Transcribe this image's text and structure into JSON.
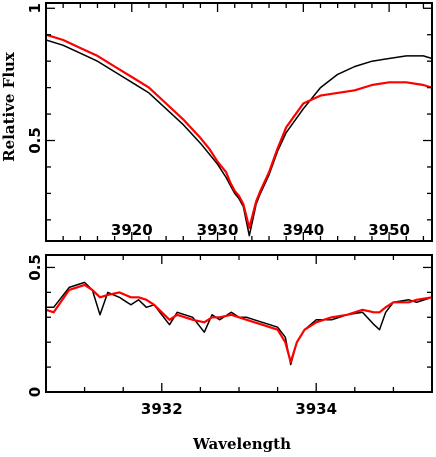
{
  "chart_data": [
    {
      "type": "line",
      "panel": "top",
      "ylabel": "Relative Flux",
      "xlim": [
        3910,
        3955
      ],
      "ylim": [
        0.12,
        1.02
      ],
      "x_ticks": [
        3920,
        3930,
        3940,
        3950
      ],
      "y_ticks": [
        0.5,
        1
      ],
      "x_tick_labels_inside": true,
      "series": [
        {
          "color": "#000000",
          "x": [
            3910,
            3912,
            3914,
            3916,
            3918,
            3920,
            3922,
            3924,
            3926,
            3928,
            3929,
            3930,
            3931,
            3931.5,
            3932,
            3932.5,
            3933,
            3933.7,
            3934.5,
            3935,
            3936,
            3937,
            3938,
            3940,
            3942,
            3944,
            3946,
            3948,
            3950,
            3952,
            3954,
            3955
          ],
          "y": [
            0.88,
            0.86,
            0.83,
            0.8,
            0.76,
            0.72,
            0.68,
            0.62,
            0.56,
            0.49,
            0.45,
            0.41,
            0.36,
            0.33,
            0.3,
            0.28,
            0.25,
            0.14,
            0.26,
            0.3,
            0.37,
            0.46,
            0.53,
            0.62,
            0.7,
            0.75,
            0.78,
            0.8,
            0.81,
            0.82,
            0.82,
            0.81
          ]
        },
        {
          "color": "#ff0000",
          "x": [
            3910,
            3912,
            3914,
            3916,
            3918,
            3920,
            3922,
            3924,
            3926,
            3928,
            3929,
            3930,
            3931,
            3931.5,
            3932,
            3932.5,
            3933,
            3933.7,
            3934.5,
            3935,
            3936,
            3937,
            3938,
            3940,
            3942,
            3944,
            3946,
            3948,
            3950,
            3952,
            3954,
            3955
          ],
          "y": [
            0.9,
            0.88,
            0.85,
            0.82,
            0.78,
            0.74,
            0.7,
            0.64,
            0.58,
            0.51,
            0.47,
            0.42,
            0.38,
            0.34,
            0.31,
            0.29,
            0.26,
            0.17,
            0.27,
            0.31,
            0.38,
            0.47,
            0.55,
            0.64,
            0.67,
            0.68,
            0.69,
            0.71,
            0.72,
            0.72,
            0.71,
            0.7
          ]
        }
      ]
    },
    {
      "type": "line",
      "panel": "bottom",
      "xlabel": "Wavelength",
      "xlim": [
        3930.5,
        3935.5
      ],
      "ylim": [
        0,
        0.55
      ],
      "x_ticks": [
        3932,
        3934
      ],
      "y_ticks": [
        0,
        0.5
      ],
      "series": [
        {
          "color": "#000000",
          "x": [
            3930.5,
            3930.6,
            3930.8,
            3930.9,
            3931.0,
            3931.1,
            3931.2,
            3931.3,
            3931.45,
            3931.6,
            3931.7,
            3931.8,
            3931.9,
            3932.0,
            3932.1,
            3932.2,
            3932.3,
            3932.4,
            3932.55,
            3932.65,
            3932.75,
            3932.9,
            3933.0,
            3933.1,
            3933.2,
            3933.3,
            3933.4,
            3933.5,
            3933.6,
            3933.67,
            3933.75,
            3933.85,
            3934.0,
            3934.2,
            3934.4,
            3934.6,
            3934.75,
            3934.82,
            3934.9,
            3935.0,
            3935.2,
            3935.3,
            3935.5
          ],
          "y": [
            0.34,
            0.34,
            0.42,
            0.43,
            0.44,
            0.41,
            0.31,
            0.4,
            0.38,
            0.35,
            0.37,
            0.34,
            0.35,
            0.31,
            0.27,
            0.32,
            0.31,
            0.3,
            0.24,
            0.31,
            0.29,
            0.32,
            0.3,
            0.3,
            0.29,
            0.28,
            0.27,
            0.26,
            0.22,
            0.11,
            0.2,
            0.25,
            0.29,
            0.29,
            0.31,
            0.32,
            0.27,
            0.25,
            0.32,
            0.36,
            0.37,
            0.36,
            0.38
          ]
        },
        {
          "color": "#ff0000",
          "x": [
            3930.5,
            3930.6,
            3930.8,
            3930.9,
            3931.0,
            3931.1,
            3931.2,
            3931.3,
            3931.45,
            3931.6,
            3931.7,
            3931.8,
            3931.9,
            3932.0,
            3932.1,
            3932.2,
            3932.3,
            3932.4,
            3932.55,
            3932.65,
            3932.75,
            3932.9,
            3933.0,
            3933.1,
            3933.2,
            3933.3,
            3933.4,
            3933.5,
            3933.6,
            3933.67,
            3933.75,
            3933.85,
            3934.0,
            3934.2,
            3934.4,
            3934.6,
            3934.75,
            3934.82,
            3934.9,
            3935.0,
            3935.2,
            3935.3,
            3935.5
          ],
          "y": [
            0.33,
            0.32,
            0.41,
            0.42,
            0.43,
            0.41,
            0.38,
            0.39,
            0.4,
            0.38,
            0.38,
            0.37,
            0.35,
            0.32,
            0.29,
            0.31,
            0.3,
            0.29,
            0.28,
            0.3,
            0.3,
            0.31,
            0.3,
            0.29,
            0.28,
            0.27,
            0.26,
            0.25,
            0.2,
            0.12,
            0.2,
            0.25,
            0.28,
            0.3,
            0.31,
            0.33,
            0.32,
            0.32,
            0.34,
            0.36,
            0.36,
            0.37,
            0.38
          ]
        }
      ]
    }
  ]
}
